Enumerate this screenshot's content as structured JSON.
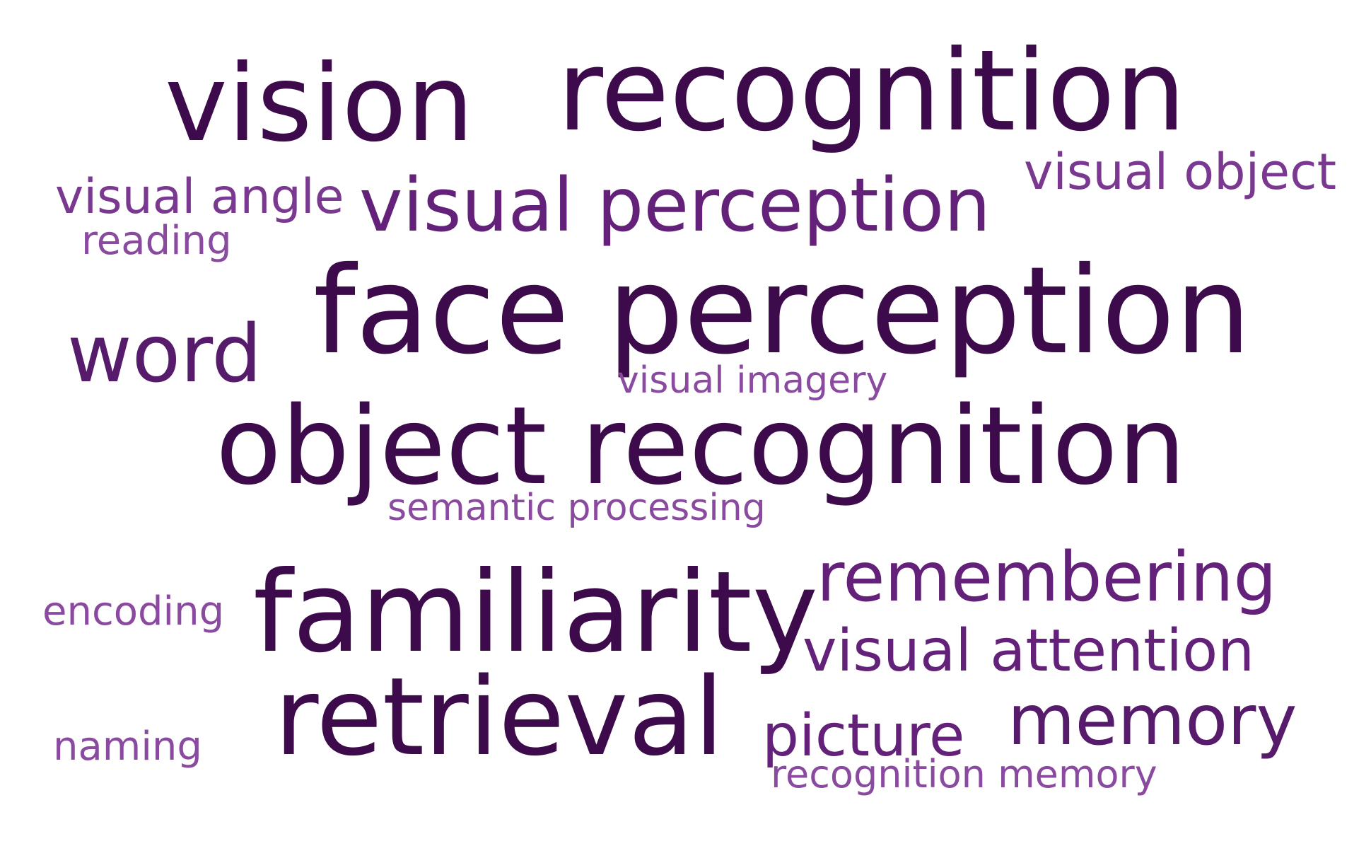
{
  "words": [
    {
      "id": "vision",
      "text": "vision",
      "color": "#3d0a4b"
    },
    {
      "id": "recognition",
      "text": "recognition",
      "color": "#3d0a4b"
    },
    {
      "id": "visual-object",
      "text": "visual object",
      "color": "#7a3891"
    },
    {
      "id": "visual-angle",
      "text": "visual angle",
      "color": "#7a3891"
    },
    {
      "id": "visual-perception",
      "text": "visual perception",
      "color": "#63217a"
    },
    {
      "id": "reading",
      "text": "reading",
      "color": "#8a4aa0"
    },
    {
      "id": "face-perception",
      "text": "face perception",
      "color": "#3d0a4b"
    },
    {
      "id": "word",
      "text": "word",
      "color": "#571b6b"
    },
    {
      "id": "visual-imagery",
      "text": "visual imagery",
      "color": "#8a4aa0"
    },
    {
      "id": "object-recognition",
      "text": "object recognition",
      "color": "#3d0a4b"
    },
    {
      "id": "semantic-processing",
      "text": "semantic processing",
      "color": "#8a4aa0"
    },
    {
      "id": "remembering",
      "text": "remembering",
      "color": "#63217a"
    },
    {
      "id": "encoding",
      "text": "encoding",
      "color": "#8a4aa0"
    },
    {
      "id": "familiarity",
      "text": "familiarity",
      "color": "#3d0a4b"
    },
    {
      "id": "visual-attention",
      "text": "visual attention",
      "color": "#63217a"
    },
    {
      "id": "retrieval",
      "text": "retrieval",
      "color": "#3d0a4b"
    },
    {
      "id": "memory",
      "text": "memory",
      "color": "#571b6b"
    },
    {
      "id": "picture",
      "text": "picture",
      "color": "#63217a"
    },
    {
      "id": "naming",
      "text": "naming",
      "color": "#8a4aa0"
    },
    {
      "id": "recognition-memory",
      "text": "recognition memory",
      "color": "#8a4aa0"
    }
  ]
}
